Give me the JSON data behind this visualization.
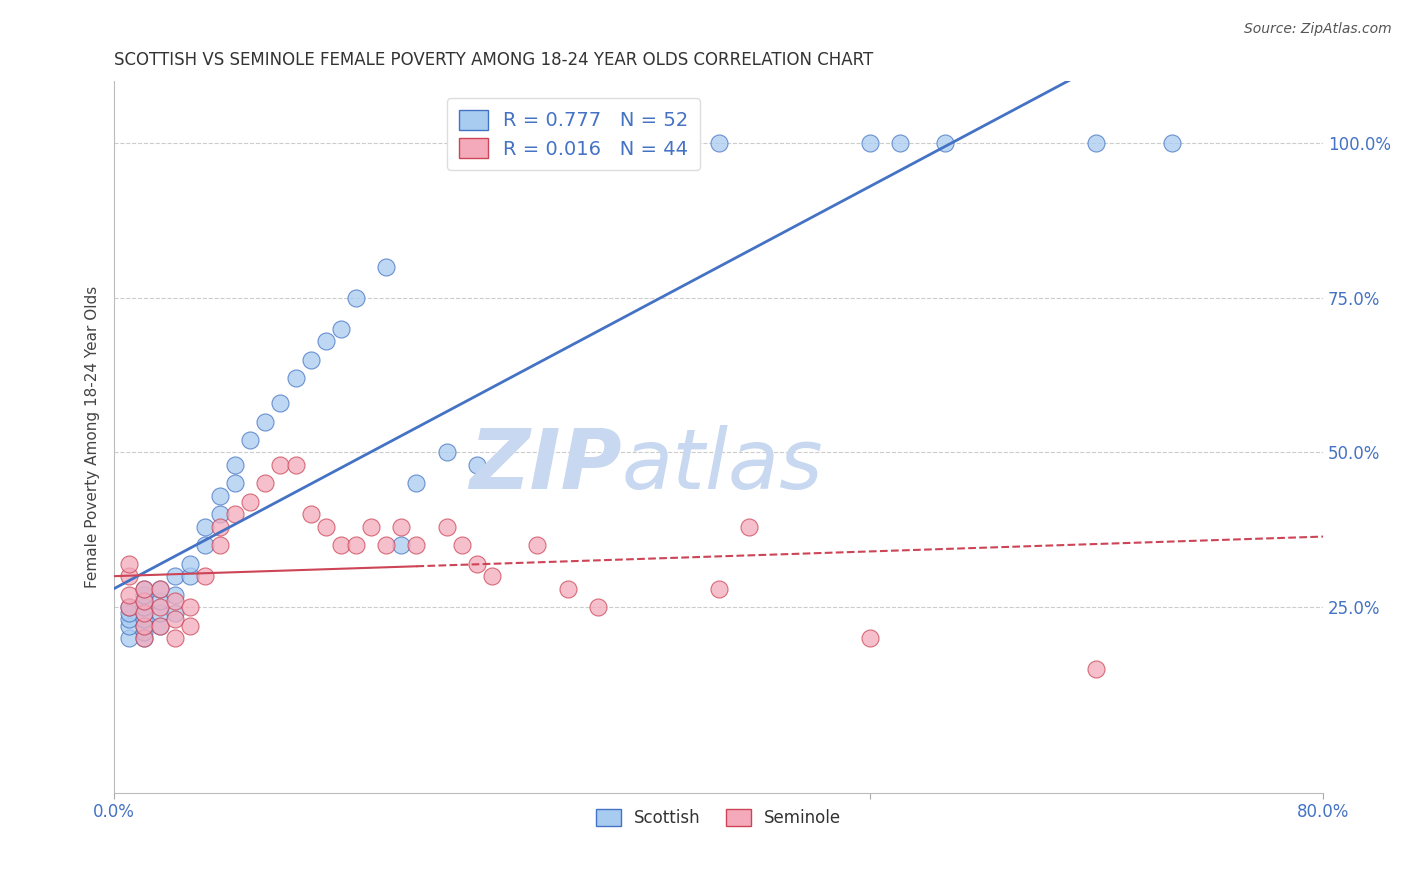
{
  "title": "SCOTTISH VS SEMINOLE FEMALE POVERTY AMONG 18-24 YEAR OLDS CORRELATION CHART",
  "source": "Source: ZipAtlas.com",
  "ylabel": "Female Poverty Among 18-24 Year Olds",
  "xlim": [
    0.0,
    0.8
  ],
  "ylim": [
    -0.05,
    1.1
  ],
  "y_ticks": [
    0.25,
    0.5,
    0.75,
    1.0
  ],
  "y_tick_labels": [
    "25.0%",
    "50.0%",
    "75.0%",
    "100.0%"
  ],
  "x_tick_labels": [
    "0.0%",
    "80.0%"
  ],
  "scottish_color": "#A8CCF0",
  "seminole_color": "#F4AABB",
  "scottish_line_color": "#4472C4",
  "seminole_line_color": "#CC4455",
  "legend_r_scottish": "R = 0.777",
  "legend_n_scottish": "N = 52",
  "legend_r_seminole": "R = 0.016",
  "legend_n_seminole": "N = 44",
  "scottish_line_slope": 1.3,
  "scottish_line_intercept": 0.28,
  "seminole_line_slope": 0.08,
  "seminole_line_intercept": 0.3,
  "scottish_x": [
    0.01,
    0.01,
    0.01,
    0.01,
    0.01,
    0.02,
    0.02,
    0.02,
    0.02,
    0.02,
    0.02,
    0.02,
    0.02,
    0.02,
    0.03,
    0.03,
    0.03,
    0.03,
    0.04,
    0.04,
    0.04,
    0.05,
    0.05,
    0.06,
    0.06,
    0.07,
    0.07,
    0.08,
    0.08,
    0.09,
    0.1,
    0.11,
    0.12,
    0.13,
    0.14,
    0.15,
    0.16,
    0.18,
    0.19,
    0.2,
    0.22,
    0.24,
    0.3,
    0.32,
    0.35,
    0.38,
    0.4,
    0.5,
    0.52,
    0.55,
    0.65,
    0.7
  ],
  "scottish_y": [
    0.2,
    0.22,
    0.23,
    0.24,
    0.25,
    0.2,
    0.21,
    0.22,
    0.23,
    0.24,
    0.25,
    0.26,
    0.27,
    0.28,
    0.22,
    0.24,
    0.26,
    0.28,
    0.24,
    0.27,
    0.3,
    0.3,
    0.32,
    0.35,
    0.38,
    0.4,
    0.43,
    0.45,
    0.48,
    0.52,
    0.55,
    0.58,
    0.62,
    0.65,
    0.68,
    0.7,
    0.75,
    0.8,
    0.35,
    0.45,
    0.5,
    0.48,
    1.0,
    1.0,
    1.0,
    1.0,
    1.0,
    1.0,
    1.0,
    1.0,
    1.0,
    1.0
  ],
  "seminole_x": [
    0.01,
    0.01,
    0.01,
    0.01,
    0.02,
    0.02,
    0.02,
    0.02,
    0.02,
    0.03,
    0.03,
    0.03,
    0.04,
    0.04,
    0.04,
    0.05,
    0.05,
    0.06,
    0.07,
    0.07,
    0.08,
    0.09,
    0.1,
    0.11,
    0.12,
    0.13,
    0.14,
    0.15,
    0.16,
    0.17,
    0.18,
    0.19,
    0.2,
    0.22,
    0.23,
    0.24,
    0.25,
    0.28,
    0.3,
    0.32,
    0.4,
    0.42,
    0.5,
    0.65
  ],
  "seminole_y": [
    0.25,
    0.27,
    0.3,
    0.32,
    0.2,
    0.22,
    0.24,
    0.26,
    0.28,
    0.22,
    0.25,
    0.28,
    0.2,
    0.23,
    0.26,
    0.22,
    0.25,
    0.3,
    0.35,
    0.38,
    0.4,
    0.42,
    0.45,
    0.48,
    0.48,
    0.4,
    0.38,
    0.35,
    0.35,
    0.38,
    0.35,
    0.38,
    0.35,
    0.38,
    0.35,
    0.32,
    0.3,
    0.35,
    0.28,
    0.25,
    0.28,
    0.38,
    0.2,
    0.15
  ],
  "grid_color": "#CCCCCC",
  "watermark_zip_color": "#C8D8F0",
  "watermark_atlas_color": "#C8D8F0"
}
